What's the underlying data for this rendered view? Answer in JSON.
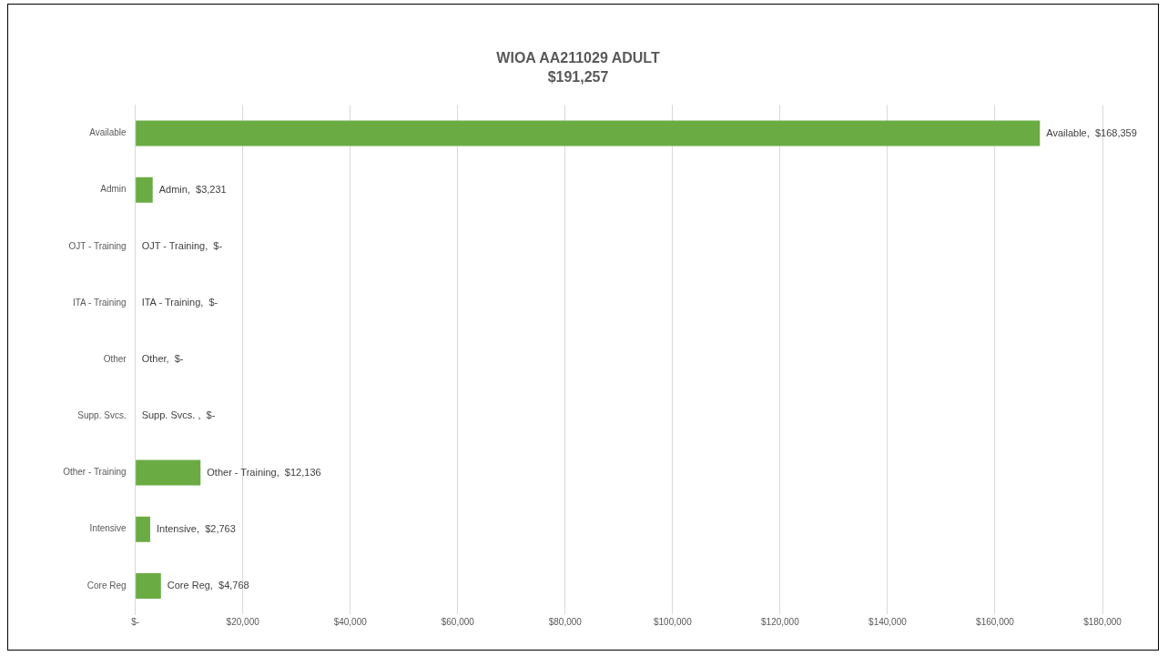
{
  "chart_data": {
    "type": "bar",
    "orientation": "horizontal",
    "title": "WIOA AA211029 ADULT",
    "subtitle": "$191,257",
    "categories": [
      "Available",
      "Admin",
      "OJT - Training",
      "ITA - Training",
      "Other",
      "Supp. Svcs.",
      "Other - Training",
      "Intensive",
      "Core Reg"
    ],
    "values": [
      168359,
      3231,
      0,
      0,
      0,
      0,
      12136,
      2763,
      4768
    ],
    "value_labels": [
      "Available,  $168,359",
      "Admin,  $3,231",
      "OJT - Training,  $-",
      "ITA - Training,  $-",
      "Other,  $-",
      "Supp. Svcs. ,  $-",
      "Other - Training,  $12,136",
      "Intensive,  $2,763",
      "Core Reg,  $4,768"
    ],
    "color": "#6aac43",
    "xlim": [
      0,
      180000
    ],
    "xticks": [
      {
        "value": 0,
        "label": "$-"
      },
      {
        "value": 20000,
        "label": "$20,000"
      },
      {
        "value": 40000,
        "label": "$40,000"
      },
      {
        "value": 60000,
        "label": "$60,000"
      },
      {
        "value": 80000,
        "label": "$80,000"
      },
      {
        "value": 100000,
        "label": "$100,000"
      },
      {
        "value": 120000,
        "label": "$120,000"
      },
      {
        "value": 140000,
        "label": "$140,000"
      },
      {
        "value": 160000,
        "label": "$160,000"
      },
      {
        "value": 180000,
        "label": "$180,000"
      }
    ],
    "grid": "x",
    "legend": false
  }
}
